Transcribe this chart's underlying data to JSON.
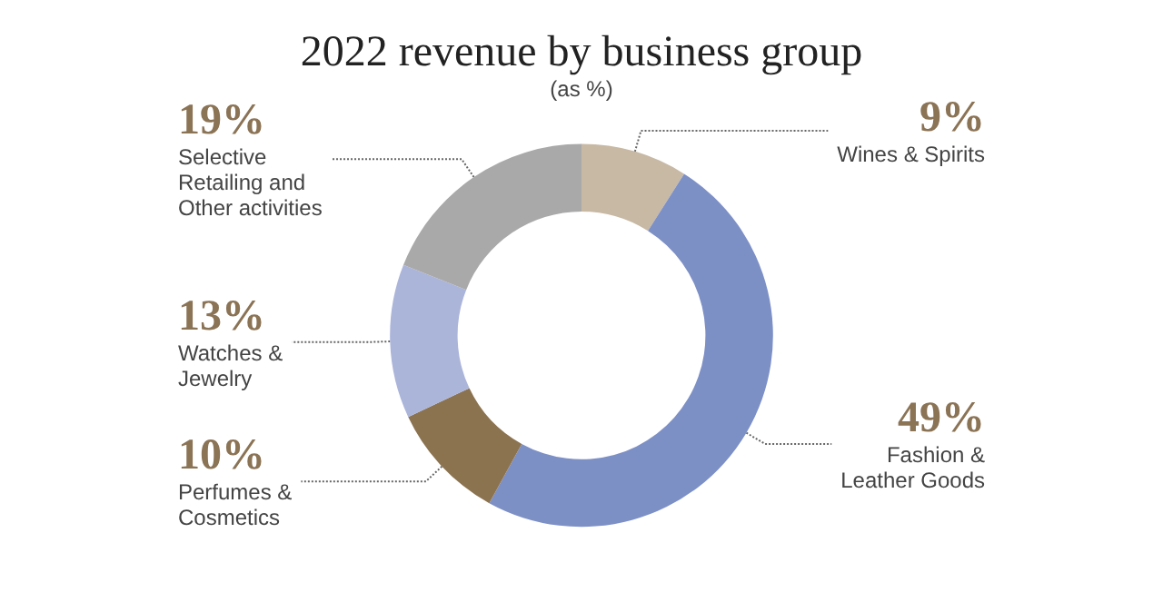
{
  "chart_data": {
    "type": "donut",
    "title": "2022 revenue by business group",
    "subtitle": "(as %)",
    "categories": [
      "Wines & Spirits",
      "Fashion & Leather Goods",
      "Perfumes & Cosmetics",
      "Watches & Jewelry",
      "Selective Retailing and Other activities"
    ],
    "values": [
      9,
      49,
      10,
      13,
      19
    ],
    "value_labels": [
      "9%",
      "49%",
      "10%",
      "13%",
      "19%"
    ],
    "colors": [
      "#c8b9a5",
      "#7d90c6",
      "#8c7350",
      "#abb5da",
      "#a9a9a9"
    ],
    "legend": false
  }
}
